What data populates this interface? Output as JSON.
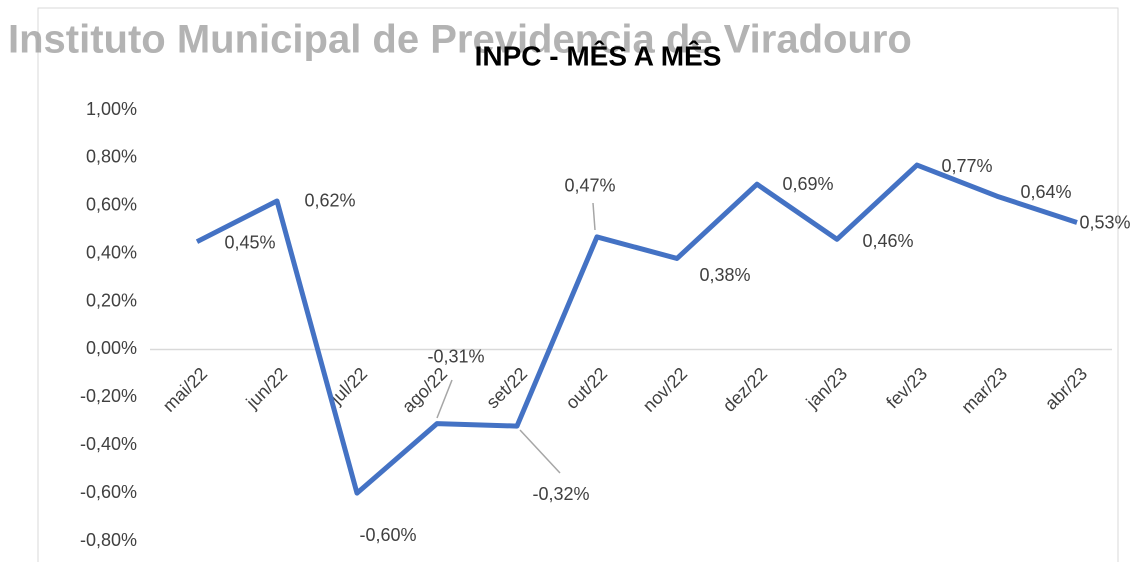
{
  "chart_data": {
    "type": "line",
    "watermark": "Instituto Municipal de Previdencia de Viradouro",
    "title": "INPC - MÊS A MÊS",
    "categories": [
      "mai/22",
      "jun/22",
      "jul/22",
      "ago/22",
      "set/22",
      "out/22",
      "nov/22",
      "dez/22",
      "jan/23",
      "fev/23",
      "mar/23",
      "abr/23"
    ],
    "values": [
      0.45,
      0.62,
      -0.6,
      -0.31,
      -0.32,
      0.47,
      0.38,
      0.69,
      0.46,
      0.77,
      0.64,
      0.53
    ],
    "value_labels": [
      "0,45%",
      "0,62%",
      "-0,60%",
      "-0,31%",
      "-0,32%",
      "0,47%",
      "0,38%",
      "0,69%",
      "0,46%",
      "0,77%",
      "0,64%",
      "0,53%"
    ],
    "color": "#4472c4",
    "ylim": [
      -0.8,
      1.0
    ],
    "yticks": [
      {
        "value": 1.0,
        "label": "1,00%"
      },
      {
        "value": 0.8,
        "label": "0,80%"
      },
      {
        "value": 0.6,
        "label": "0,60%"
      },
      {
        "value": 0.4,
        "label": "0,40%"
      },
      {
        "value": 0.2,
        "label": "0,20%"
      },
      {
        "value": 0,
        "label": "0,00%"
      },
      {
        "value": -0.2,
        "label": "-0,20%"
      },
      {
        "value": -0.4,
        "label": "-0,40%"
      },
      {
        "value": -0.6,
        "label": "-0,60%"
      },
      {
        "value": -0.8,
        "label": "-0,80%"
      }
    ],
    "grid": false
  }
}
